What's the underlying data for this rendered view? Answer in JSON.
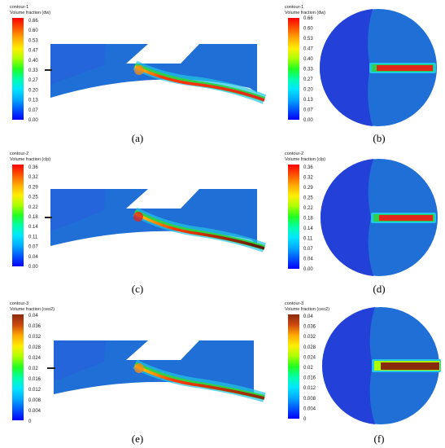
{
  "colors": {
    "blue_bg": "#1f6fd6",
    "deep_blue": "#2340d8",
    "cyan": "#22c6e6",
    "red": "#e2261c",
    "dark_red": "#8a2a0c",
    "orange": "#f28a1a",
    "green": "#2fd04a"
  },
  "colormap_rainbow": [
    "#0000ff",
    "#0055ff",
    "#00aaff",
    "#00e5ff",
    "#00ffaa",
    "#22ff22",
    "#aaff00",
    "#ffee00",
    "#ffaa00",
    "#ff5500",
    "#ff0000"
  ],
  "colormap_ceo2": [
    "#0000ff",
    "#0055ff",
    "#00aaff",
    "#00e5ff",
    "#00ffaa",
    "#22ff22",
    "#aaff00",
    "#ffee00",
    "#ffaa00",
    "#cc4a10",
    "#8a2a0c"
  ],
  "panels": [
    {
      "caption": "(a)",
      "title_line1": "contour-1",
      "title_line2": "Volume fraction (dw)",
      "ticks": [
        "0.66",
        "0.60",
        "0.53",
        "0.47",
        "0.40",
        "0.33",
        "0.27",
        "0.20",
        "0.13",
        "0.07",
        "0.00"
      ]
    },
    {
      "caption": "(b)",
      "title_line1": "contour-1",
      "title_line2": "Volume fraction (dw)",
      "ticks": [
        "0.66",
        "0.60",
        "0.53",
        "0.47",
        "0.40",
        "0.33",
        "0.27",
        "0.20",
        "0.13",
        "0.07",
        "0.00"
      ]
    },
    {
      "caption": "(c)",
      "title_line1": "contour-2",
      "title_line2": "Volume fraction (clp)",
      "ticks": [
        "0.36",
        "0.32",
        "0.29",
        "0.25",
        "0.22",
        "0.18",
        "0.14",
        "0.11",
        "0.07",
        "0.04",
        "0.00"
      ]
    },
    {
      "caption": "(d)",
      "title_line1": "contour-2",
      "title_line2": "Volume fraction (clp)",
      "ticks": [
        "0.36",
        "0.32",
        "0.29",
        "0.25",
        "0.22",
        "0.18",
        "0.14",
        "0.11",
        "0.07",
        "0.04",
        "0.00"
      ]
    },
    {
      "caption": "(e)",
      "title_line1": "contour-3",
      "title_line2": "Volume fraction (ceo2)",
      "ticks": [
        "0.04",
        "0.036",
        "0.032",
        "0.028",
        "0.024",
        "0.02",
        "0.016",
        "0.012",
        "0.008",
        "0.004",
        "0"
      ]
    },
    {
      "caption": "(f)",
      "title_line1": "contour-3",
      "title_line2": "Volume fraction (ceo2)",
      "ticks": [
        "0.04",
        "0.036",
        "0.032",
        "0.028",
        "0.024",
        "0.02",
        "0.016",
        "0.012",
        "0.008",
        "0.004",
        "0"
      ]
    }
  ]
}
